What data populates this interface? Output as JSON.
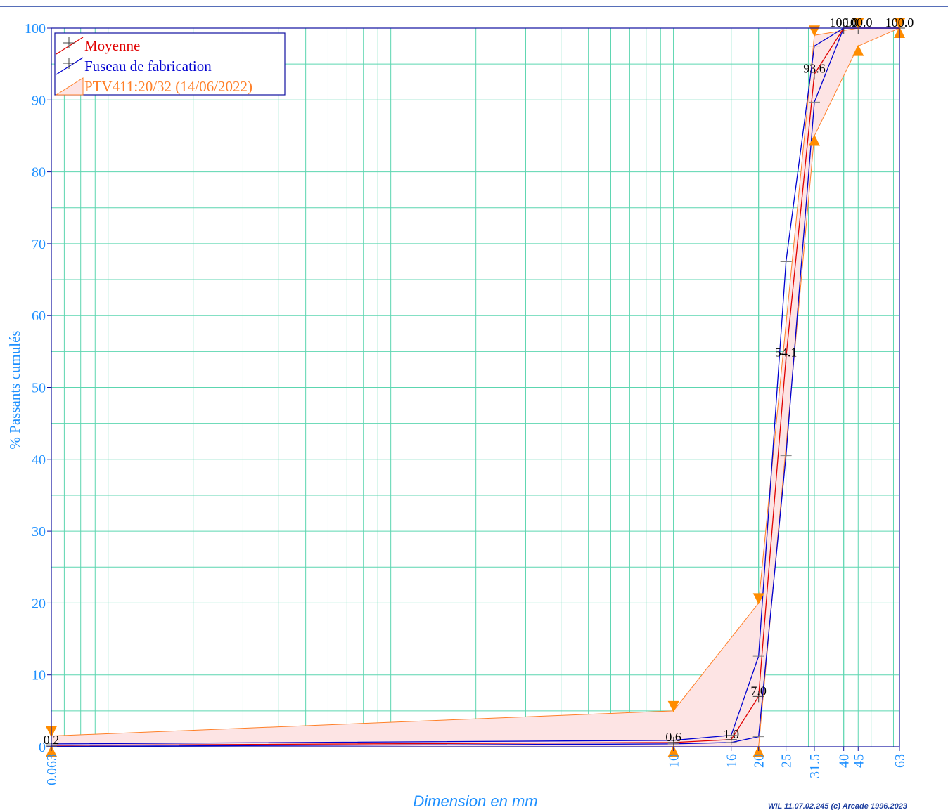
{
  "colors": {
    "background": "#ffffff",
    "top_rule": "#1E3FA0",
    "grid": "#5CD6B0",
    "axis": "#1010A0",
    "tick_text": "#1E90FF",
    "moyenne": "#E00000",
    "fuseau": "#0000D0",
    "ptv_line": "#FF7F27",
    "ptv_fill": "#FDE4E4",
    "ptv_marker": "#FF8C00",
    "label": "#000000"
  },
  "chart_data": {
    "type": "line",
    "xlabel": "Dimension en mm",
    "ylabel": "% Passants cumulés",
    "x_scale": "log",
    "xlim": [
      0.063,
      63
    ],
    "ylim": [
      0,
      100
    ],
    "grid": true,
    "legend_position": "top-left",
    "x_ticks": [
      "0.063",
      "10",
      "16",
      "20",
      "25",
      "31.5",
      "40",
      "45",
      "63"
    ],
    "y_ticks": [
      "0",
      "10",
      "20",
      "30",
      "40",
      "50",
      "60",
      "70",
      "80",
      "90",
      "100"
    ],
    "series": [
      {
        "name": "Moyenne",
        "color": "#E00000",
        "x": [
          0.063,
          10,
          16,
          20,
          25,
          31.5,
          40,
          45,
          63
        ],
        "y": [
          0.2,
          0.6,
          1.0,
          7.0,
          54.1,
          93.6,
          100.0,
          100.0,
          100.0
        ]
      },
      {
        "name": "Fuseau de fabrication",
        "color": "#0000D0",
        "x": [
          0.063,
          10,
          16,
          20,
          25,
          31.5,
          40,
          45,
          63
        ],
        "upper": [
          0.4,
          0.9,
          1.6,
          12.6,
          67.5,
          97.5,
          100,
          100,
          100
        ],
        "lower": [
          0.05,
          0.4,
          0.6,
          1.4,
          40.5,
          89.7,
          100,
          100,
          100
        ]
      },
      {
        "name": "PTV411:20/32 (14/06/2022)",
        "color": "#FF7F27",
        "x": [
          0.063,
          10,
          20,
          31.5,
          45,
          63
        ],
        "upper": [
          1.5,
          5,
          20,
          99,
          100,
          100
        ],
        "lower": [
          0,
          0,
          0,
          85,
          97.5,
          100
        ]
      }
    ],
    "data_labels": [
      {
        "x": 0.063,
        "y": 0.2,
        "text": "0.2"
      },
      {
        "x": 10,
        "y": 0.6,
        "text": "0.6"
      },
      {
        "x": 16,
        "y": 1.0,
        "text": "1.0"
      },
      {
        "x": 20,
        "y": 7.0,
        "text": "7.0"
      },
      {
        "x": 25,
        "y": 54.1,
        "text": "54.1"
      },
      {
        "x": 31.5,
        "y": 93.6,
        "text": "93.6"
      },
      {
        "x": 40,
        "y": 100.0,
        "text": "100.0"
      },
      {
        "x": 45,
        "y": 100.0,
        "text": "100.0"
      },
      {
        "x": 63,
        "y": 100.0,
        "text": "100.0"
      }
    ]
  },
  "footer": {
    "copyright": "WIL 11.07.02.245 (c) Arcade 1996.2023"
  }
}
